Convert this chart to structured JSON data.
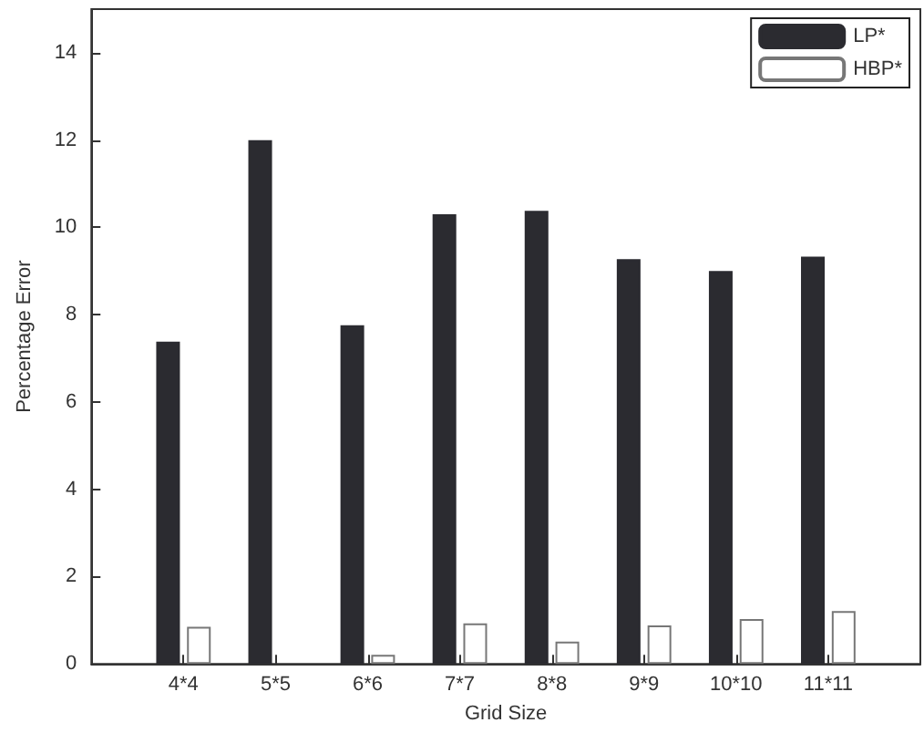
{
  "chart_data": {
    "type": "bar",
    "xlabel": "Grid Size",
    "ylabel": "Percentage Error",
    "categories": [
      "4*4",
      "5*5",
      "6*6",
      "7*7",
      "8*8",
      "9*9",
      "10*10",
      "11*11"
    ],
    "series": [
      {
        "name": "LP*",
        "color": "#2b2b30",
        "values": [
          7.38,
          12.0,
          7.76,
          10.3,
          10.38,
          9.27,
          9.0,
          9.33
        ]
      },
      {
        "name": "HBP*",
        "color": "#ffffff",
        "values": [
          0.85,
          null,
          0.21,
          0.93,
          0.51,
          0.88,
          1.03,
          1.21
        ]
      }
    ],
    "ylim": [
      0,
      15
    ],
    "yticks": [
      0,
      2,
      4,
      6,
      8,
      10,
      12,
      14
    ],
    "legend": "top right",
    "grid": false
  }
}
